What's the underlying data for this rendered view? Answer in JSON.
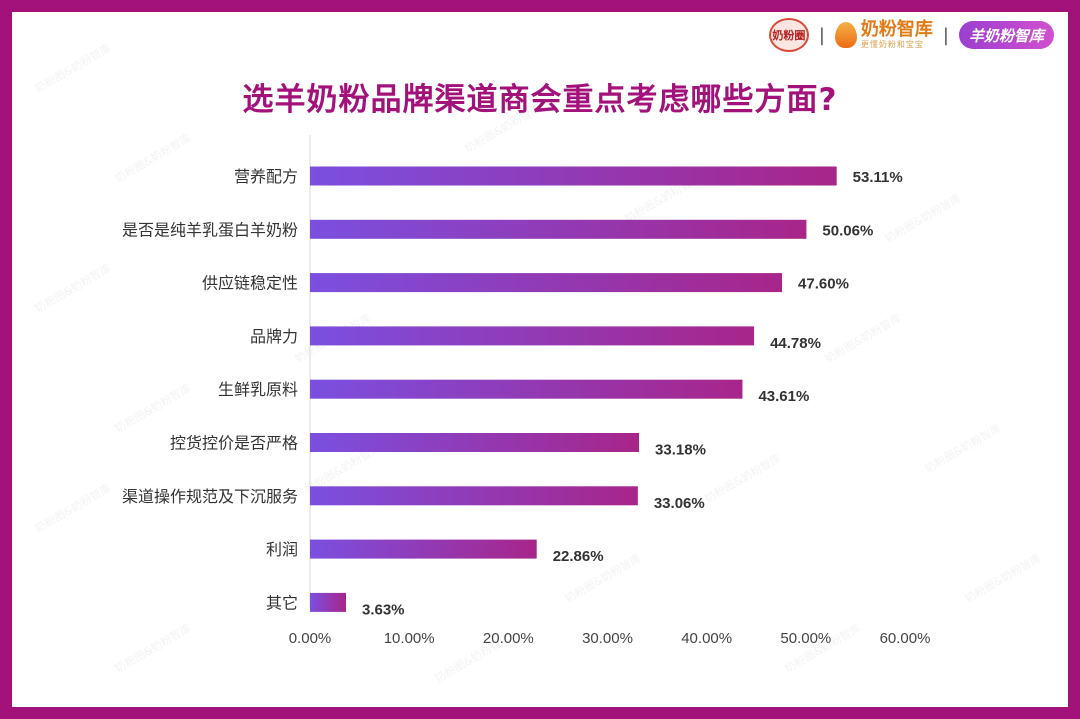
{
  "header": {
    "logo1": "奶粉圈",
    "logo2": "奶粉智库",
    "logo2_sub": "更懂奶粉和宝宝",
    "logo3": "羊奶粉智库",
    "separator": "|"
  },
  "watermark": "奶粉圈&奶粉智库",
  "chart_data": {
    "type": "bar",
    "orientation": "horizontal",
    "title": "选羊奶粉品牌渠道商会重点考虑哪些方面?",
    "categories": [
      "营养配方",
      "是否是纯羊乳蛋白羊奶粉",
      "供应链稳定性",
      "品牌力",
      "生鲜乳原料",
      "控货控价是否严格",
      "渠道操作规范及下沉服务",
      "利润",
      "其它"
    ],
    "values": [
      53.11,
      50.06,
      47.6,
      44.78,
      43.61,
      33.18,
      33.06,
      22.86,
      3.63
    ],
    "value_labels": [
      "53.11%",
      "50.06%",
      "47.60%",
      "44.78%",
      "43.61%",
      "33.18%",
      "33.06%",
      "22.86%",
      "3.63%"
    ],
    "xlim": [
      0,
      60
    ],
    "x_ticks": [
      "0.00%",
      "10.00%",
      "20.00%",
      "30.00%",
      "40.00%",
      "50.00%",
      "60.00%"
    ],
    "grid": false,
    "bar_gradient": [
      "#7b4fe0",
      "#a8258a"
    ]
  }
}
